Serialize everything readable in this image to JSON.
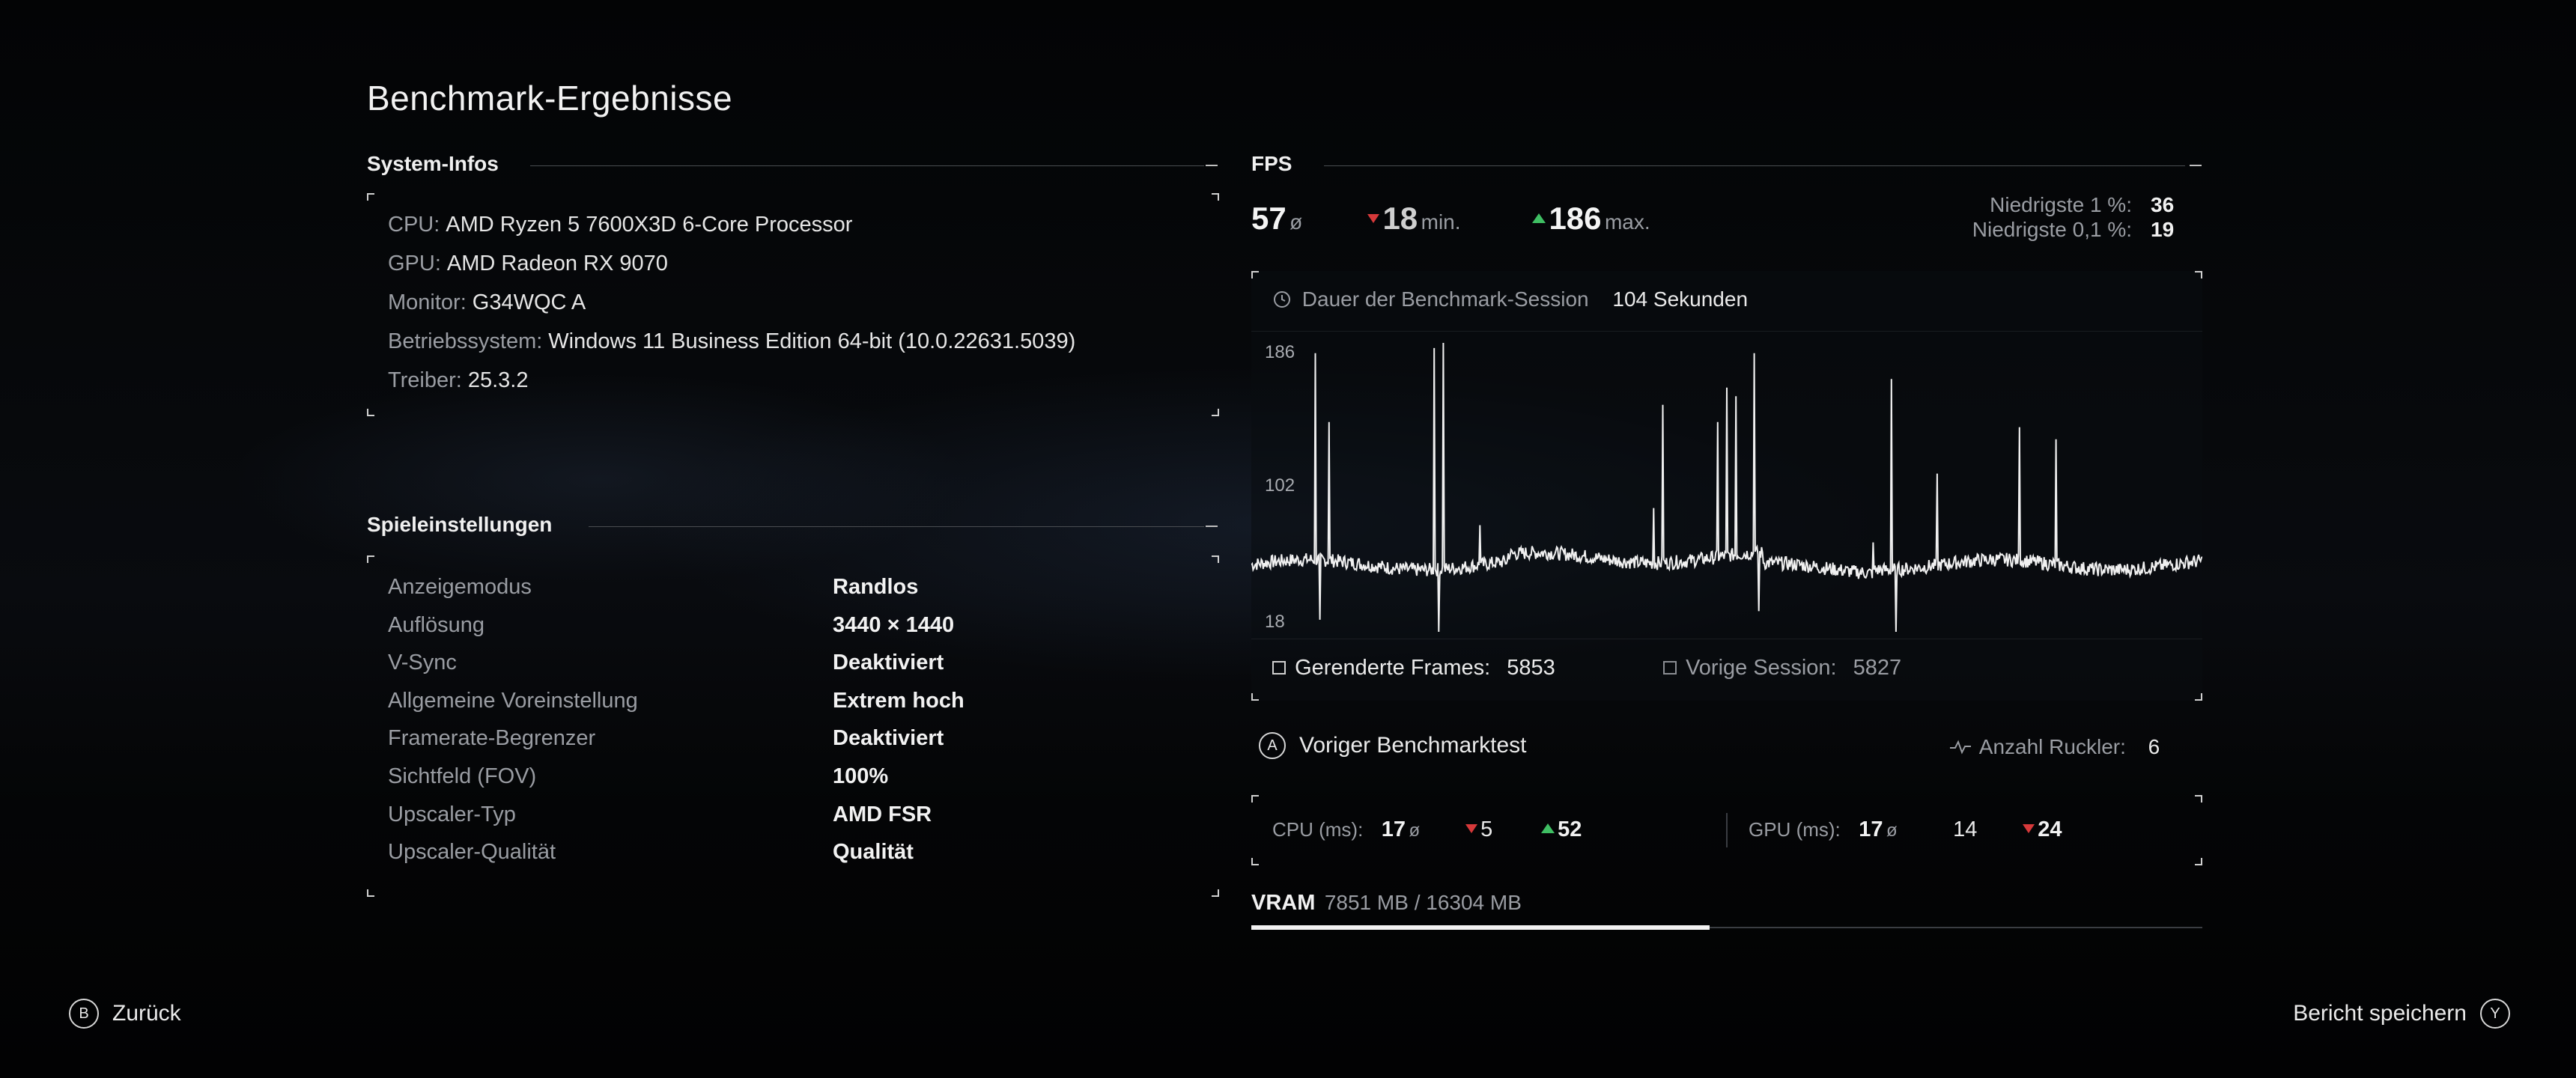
{
  "title": "Benchmark-Ergebnisse",
  "system": {
    "header": "System-Infos",
    "rows": [
      {
        "key": "CPU:",
        "value": "AMD Ryzen 5 7600X3D 6-Core Processor"
      },
      {
        "key": "GPU:",
        "value": "AMD Radeon RX 9070"
      },
      {
        "key": "Monitor:",
        "value": "G34WQC A"
      },
      {
        "key": "Betriebssystem:",
        "value": "Windows 11 Business Edition 64-bit (10.0.22631.5039)"
      },
      {
        "key": "Treiber:",
        "value": "25.3.2"
      }
    ]
  },
  "settings": {
    "header": "Spieleinstellungen",
    "rows": [
      {
        "key": "Anzeigemodus",
        "value": "Randlos"
      },
      {
        "key": "Auflösung",
        "value": "3440 × 1440"
      },
      {
        "key": "V-Sync",
        "value": "Deaktiviert"
      },
      {
        "key": "Allgemeine Voreinstellung",
        "value": "Extrem hoch"
      },
      {
        "key": "Framerate-Begrenzer",
        "value": "Deaktiviert"
      },
      {
        "key": "Sichtfeld (FOV)",
        "value": "100%"
      },
      {
        "key": "Upscaler-Typ",
        "value": "AMD FSR"
      },
      {
        "key": "Upscaler-Qualität",
        "value": "Qualität"
      }
    ]
  },
  "fps": {
    "header": "FPS",
    "avg": "57",
    "avg_unit": "ø",
    "min": "18",
    "min_unit": "min.",
    "max": "186",
    "max_unit": "max.",
    "low1_label": "Niedrigste 1 %:",
    "low1_value": "36",
    "low01_label": "Niedrigste 0,1 %:",
    "low01_value": "19",
    "duration_label": "Dauer der Benchmark-Session",
    "duration_value": "104 Sekunden",
    "frames_label": "Gerenderte Frames:",
    "frames_value": "5853",
    "prev_session_label": "Vorige Session:",
    "prev_session_value": "5827"
  },
  "chart_data": {
    "type": "line",
    "title": "",
    "xlabel": "",
    "ylabel": "",
    "yticks": [
      "186",
      "102",
      "18"
    ],
    "ylim": [
      18,
      186
    ],
    "x_range_seconds": [
      0,
      104
    ],
    "baseline_fps": 57,
    "spikes": [
      {
        "x": 7,
        "y": 180
      },
      {
        "x": 8.5,
        "y": 140
      },
      {
        "x": 20,
        "y": 183
      },
      {
        "x": 21,
        "y": 186
      },
      {
        "x": 25,
        "y": 80
      },
      {
        "x": 44,
        "y": 90
      },
      {
        "x": 45,
        "y": 150
      },
      {
        "x": 51,
        "y": 140
      },
      {
        "x": 52,
        "y": 160
      },
      {
        "x": 53,
        "y": 155
      },
      {
        "x": 55,
        "y": 180
      },
      {
        "x": 68,
        "y": 70
      },
      {
        "x": 70,
        "y": 165
      },
      {
        "x": 75,
        "y": 110
      },
      {
        "x": 84,
        "y": 137
      },
      {
        "x": 88,
        "y": 130
      }
    ],
    "dips": [
      {
        "x": 7.5,
        "y": 25
      },
      {
        "x": 20.5,
        "y": 18
      },
      {
        "x": 55.5,
        "y": 30
      },
      {
        "x": 70.5,
        "y": 18
      }
    ],
    "color": "#f0f0f0"
  },
  "prev_benchmark": {
    "button_glyph": "A",
    "label": "Voriger Benchmarktest",
    "stutter_label": "Anzahl Ruckler:",
    "stutter_value": "6"
  },
  "cpu_gpu": {
    "cpu_label": "CPU (ms):",
    "cpu_avg": "17",
    "cpu_avg_unit": "ø",
    "cpu_min": "5",
    "cpu_max": "52",
    "gpu_label": "GPU (ms):",
    "gpu_avg": "17",
    "gpu_avg_unit": "ø",
    "gpu_mid": "14",
    "gpu_max": "24"
  },
  "vram": {
    "label": "VRAM",
    "value": "7851 MB / 16304 MB",
    "fraction": 0.4815
  },
  "footer": {
    "back_glyph": "B",
    "back_label": "Zurück",
    "save_label": "Bericht speichern",
    "save_glyph": "Y"
  }
}
